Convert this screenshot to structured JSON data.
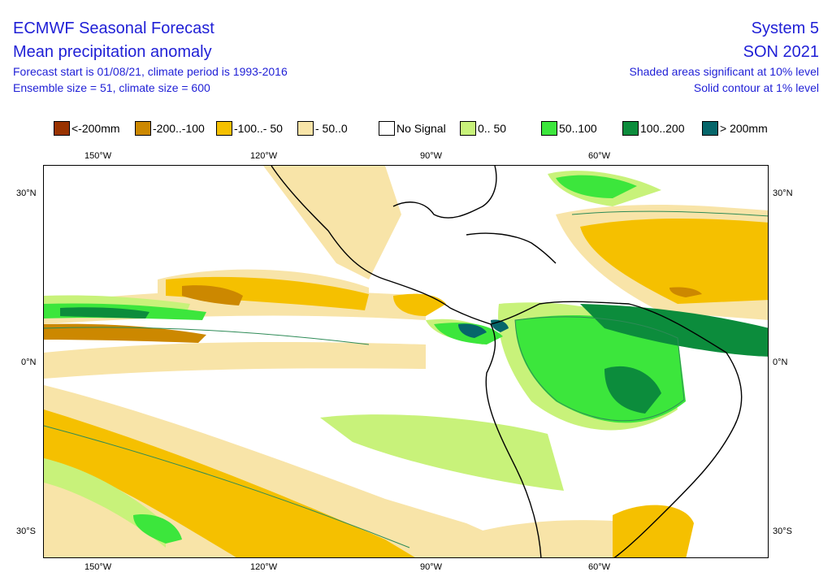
{
  "header": {
    "title_left_1": "ECMWF Seasonal Forecast",
    "title_left_2": "Mean precipitation anomaly",
    "info_1": "Forecast start is 01/08/21, climate period is 1993-2016",
    "info_2": "Ensemble size = 51, climate size = 600",
    "title_right_1": "System 5",
    "title_right_2": "SON 2021",
    "note_1": "Shaded areas significant at 10% level",
    "note_2": "Solid contour at 1% level"
  },
  "legend": [
    {
      "label": "<-200mm",
      "color": "#993300"
    },
    {
      "label": "-200..-100",
      "color": "#cc8800"
    },
    {
      "label": "-100..- 50",
      "color": "#f5c000"
    },
    {
      "label": "- 50..0",
      "color": "#f8e4a8"
    },
    {
      "label": "No Signal",
      "color": "#ffffff"
    },
    {
      "label": "0.. 50",
      "color": "#c8f27a"
    },
    {
      "label": "50..100",
      "color": "#3ce63c"
    },
    {
      "label": "100..200",
      "color": "#0c8c3c"
    },
    {
      "label": "> 200mm",
      "color": "#06666a"
    }
  ],
  "axes": {
    "top_lon": [
      "150°W",
      "120°W",
      "90°W",
      "60°W"
    ],
    "bottom_lon": [
      "150°W",
      "120°W",
      "90°W",
      "60°W"
    ],
    "left_lat": [
      "30°N",
      "0°N",
      "30°S"
    ],
    "right_lat": [
      "30°N",
      "0°N",
      "30°S"
    ]
  }
}
